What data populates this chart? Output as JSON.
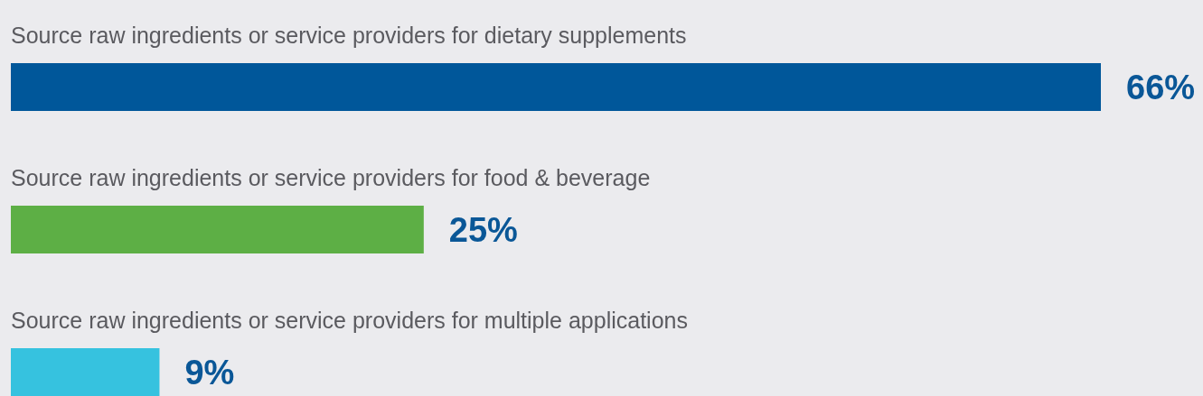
{
  "chart_data": {
    "type": "bar",
    "orientation": "horizontal",
    "categories": [
      "Source raw ingredients or service providers for dietary supplements",
      "Source raw ingredients or service providers for food & beverage",
      "Source raw ingredients or service providers for multiple applications"
    ],
    "values": [
      66,
      25,
      9
    ],
    "value_labels": [
      "66%",
      "25%",
      "9%"
    ],
    "colors": [
      "#00579a",
      "#5daf45",
      "#36c2df"
    ]
  }
}
